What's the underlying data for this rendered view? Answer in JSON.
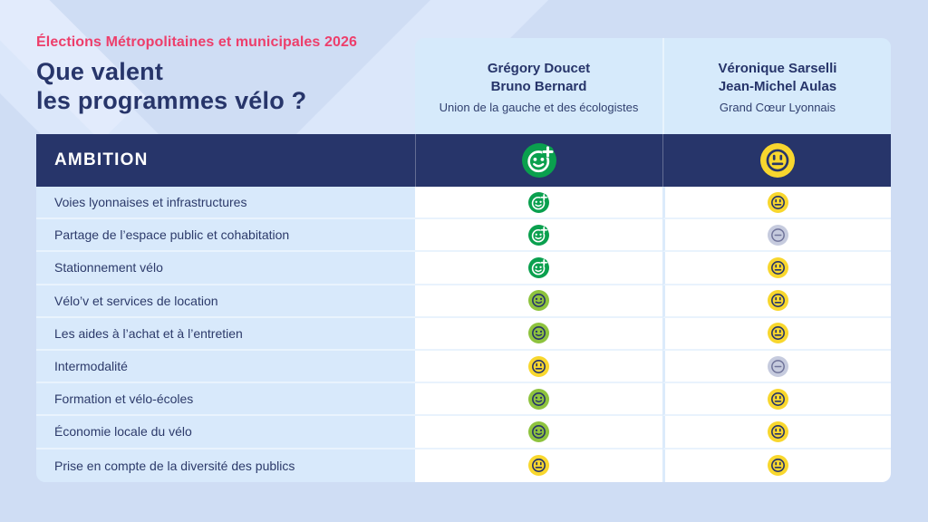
{
  "header": {
    "eyebrow": "Élections Métropolitaines et municipales 2026",
    "title_line1": "Que valent",
    "title_line2": "les programmes vélo ?"
  },
  "candidates": [
    {
      "name_line1": "Grégory Doucet",
      "name_line2": "Bruno Bernard",
      "list": "Union de la gauche et des écologistes",
      "overall_rating": "green-plus"
    },
    {
      "name_line1": "Véronique Sarselli",
      "name_line2": "Jean-Michel Aulas",
      "list": "Grand Cœur Lyonnais",
      "overall_rating": "yellow-neutral"
    }
  ],
  "section_label": "AMBITION",
  "chart_data": {
    "type": "table",
    "title": "Que valent les programmes vélo ?",
    "subtitle": "Élections Métropolitaines et municipales 2026",
    "section": "AMBITION",
    "columns": [
      "Grégory Doucet / Bruno Bernard — Union de la gauche et des écologistes",
      "Véronique Sarselli / Jean-Michel Aulas — Grand Cœur Lyonnais"
    ],
    "rating_icon_types": [
      "green-plus",
      "lime-smile",
      "yellow-neutral",
      "gray-minus"
    ],
    "overall": [
      "green-plus",
      "yellow-neutral"
    ],
    "rows": [
      {
        "label": "Voies lyonnaises et infrastructures",
        "ratings": [
          "green-plus",
          "yellow-neutral"
        ]
      },
      {
        "label": "Partage de l’espace public et cohabitation",
        "ratings": [
          "green-plus",
          "gray-minus"
        ]
      },
      {
        "label": "Stationnement vélo",
        "ratings": [
          "green-plus",
          "yellow-neutral"
        ]
      },
      {
        "label": "Vélo’v et services de location",
        "ratings": [
          "lime-smile",
          "yellow-neutral"
        ]
      },
      {
        "label": "Les aides à l’achat et à l’entretien",
        "ratings": [
          "lime-smile",
          "yellow-neutral"
        ]
      },
      {
        "label": "Intermodalité",
        "ratings": [
          "yellow-neutral",
          "gray-minus"
        ]
      },
      {
        "label": "Formation et vélo-écoles",
        "ratings": [
          "lime-smile",
          "yellow-neutral"
        ]
      },
      {
        "label": "Économie locale du vélo",
        "ratings": [
          "lime-smile",
          "yellow-neutral"
        ]
      },
      {
        "label": "Prise en compte de la diversité des publics",
        "ratings": [
          "yellow-neutral",
          "yellow-neutral"
        ]
      }
    ]
  },
  "colors": {
    "accent_pink": "#ed3e6b",
    "navy": "#27356a",
    "green": "#0aa04e",
    "lime": "#8ec33e",
    "yellow": "#f8d72e",
    "gray_fill": "#c6cbde",
    "gray_stroke": "#70749a",
    "page_bg": "#cfddf4",
    "panel_bg": "#d6eafb",
    "label_cell_bg": "#d8e9fb"
  }
}
